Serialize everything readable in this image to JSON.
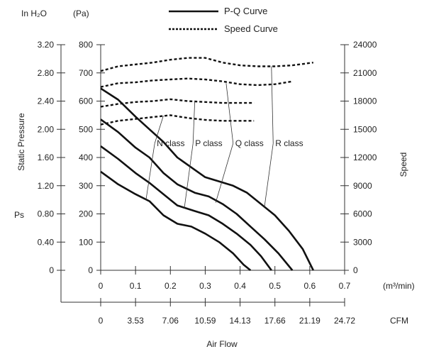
{
  "chart_data": {
    "type": "line",
    "title": "",
    "legend": [
      {
        "label": "P-Q Curve",
        "style": "solid"
      },
      {
        "label": "Speed Curve",
        "style": "dotted"
      }
    ],
    "legend_placement": "top-center",
    "left_axis": {
      "inh2o_unit": "In H₂O",
      "pa_unit": "(Pa)",
      "label": "Static Pressure",
      "symbol": "Ps",
      "inh2o_ticks": [
        "3.20",
        "2.80",
        "2.40",
        "2.00",
        "1.60",
        "1.20",
        "0.80",
        "0.40",
        "0"
      ],
      "pa_ticks": [
        "800",
        "700",
        "600",
        "500",
        "400",
        "300",
        "200",
        "100",
        "0"
      ],
      "range_pa": [
        0,
        800
      ]
    },
    "right_axis": {
      "label": "Speed",
      "ticks": [
        "24000",
        "21000",
        "18000",
        "15000",
        "12000",
        "9000",
        "6000",
        "3000",
        "0"
      ],
      "range": [
        0,
        24000
      ]
    },
    "x_axis": {
      "label": "Air Flow",
      "unit_m3": "(m³/min)",
      "unit_cfm": "CFM",
      "ticks_m3": [
        "0",
        "0.1",
        "0.2",
        "0.3",
        "0.4",
        "0.5",
        "0.6",
        "0.7"
      ],
      "ticks_cfm": [
        "0",
        "3.53",
        "7.06",
        "10.59",
        "14.13",
        "17.66",
        "21.19",
        "24.72"
      ],
      "range": [
        0,
        0.7
      ]
    },
    "grid": false,
    "pq_series": [
      {
        "name": "N class",
        "x": [
          0,
          0.05,
          0.1,
          0.14,
          0.18,
          0.22,
          0.26,
          0.3,
          0.34,
          0.38,
          0.41,
          0.43
        ],
        "y": [
          350,
          305,
          270,
          245,
          195,
          165,
          155,
          130,
          100,
          60,
          20,
          0
        ]
      },
      {
        "name": "P class",
        "x": [
          0,
          0.05,
          0.1,
          0.14,
          0.18,
          0.22,
          0.27,
          0.31,
          0.35,
          0.39,
          0.43,
          0.46,
          0.49
        ],
        "y": [
          440,
          395,
          345,
          310,
          270,
          230,
          210,
          195,
          165,
          130,
          90,
          50,
          0
        ]
      },
      {
        "name": "Q class",
        "x": [
          0,
          0.05,
          0.1,
          0.14,
          0.18,
          0.22,
          0.27,
          0.31,
          0.35,
          0.39,
          0.43,
          0.47,
          0.51,
          0.55
        ],
        "y": [
          535,
          490,
          435,
          400,
          345,
          305,
          275,
          262,
          235,
          200,
          155,
          110,
          60,
          0
        ]
      },
      {
        "name": "R class",
        "x": [
          0,
          0.05,
          0.1,
          0.14,
          0.18,
          0.22,
          0.26,
          0.3,
          0.34,
          0.38,
          0.42,
          0.46,
          0.5,
          0.54,
          0.58,
          0.61
        ],
        "y": [
          645,
          605,
          545,
          500,
          455,
          400,
          365,
          330,
          315,
          300,
          275,
          235,
          195,
          140,
          75,
          0
        ]
      }
    ],
    "speed_series": [
      {
        "name": "N class",
        "x": [
          0,
          0.05,
          0.1,
          0.15,
          0.2,
          0.25,
          0.3,
          0.35,
          0.4,
          0.44
        ],
        "y": [
          15500,
          15900,
          16100,
          16300,
          16500,
          16200,
          16000,
          15900,
          15900,
          15900
        ]
      },
      {
        "name": "P class",
        "x": [
          0,
          0.05,
          0.1,
          0.15,
          0.2,
          0.25,
          0.3,
          0.35,
          0.4,
          0.44
        ],
        "y": [
          17400,
          17700,
          17900,
          18000,
          18200,
          18000,
          17900,
          17800,
          17800,
          17800
        ]
      },
      {
        "name": "Q class",
        "x": [
          0,
          0.05,
          0.1,
          0.15,
          0.2,
          0.25,
          0.3,
          0.35,
          0.4,
          0.45,
          0.5,
          0.55
        ],
        "y": [
          19500,
          19900,
          20000,
          20200,
          20300,
          20400,
          20300,
          20100,
          19800,
          19700,
          19800,
          20100
        ]
      },
      {
        "name": "R class",
        "x": [
          0,
          0.05,
          0.1,
          0.15,
          0.2,
          0.25,
          0.3,
          0.35,
          0.4,
          0.45,
          0.5,
          0.55,
          0.61
        ],
        "y": [
          21200,
          21700,
          21900,
          22100,
          22400,
          22600,
          22600,
          22100,
          21800,
          21700,
          21700,
          21800,
          22100
        ]
      }
    ],
    "class_labels": [
      {
        "text": "N class",
        "x": 0.155,
        "y": 450,
        "pq_anchor": [
          0.13,
          250
        ],
        "speed_anchor": [
          0.18,
          16450
        ]
      },
      {
        "text": "P class",
        "x": 0.265,
        "y": 450,
        "pq_anchor": [
          0.24,
          220
        ],
        "speed_anchor": [
          0.27,
          18000
        ]
      },
      {
        "text": "Q class",
        "x": 0.38,
        "y": 450,
        "pq_anchor": [
          0.33,
          240
        ],
        "speed_anchor": [
          0.36,
          19900
        ]
      },
      {
        "text": "R class",
        "x": 0.495,
        "y": 450,
        "pq_anchor": [
          0.47,
          225
        ],
        "speed_anchor": [
          0.49,
          21700
        ]
      }
    ]
  }
}
